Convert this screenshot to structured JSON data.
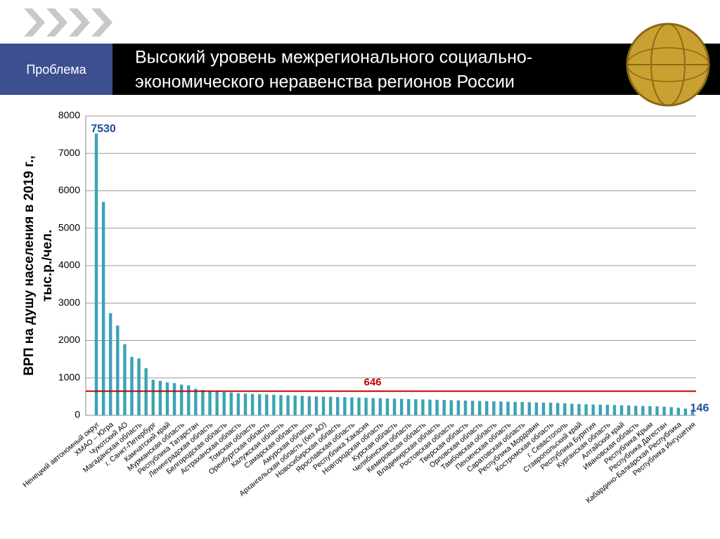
{
  "header": {
    "tab": "Проблема",
    "title": [
      "Высокий уровень межрегионального социально-",
      "экономического неравенства регионов России"
    ]
  },
  "chart_data": {
    "type": "bar",
    "ylabel": [
      "ВРП на душу населения в 2019 г.,",
      "тыс.р./чел."
    ],
    "categories": [
      "Ненецкий автономный округ",
      null,
      "ХМАО – Югра",
      null,
      "Чукотский АО",
      null,
      "Магаданская область",
      null,
      "г. Санкт-Петербург",
      null,
      "Камчатский край",
      null,
      "Мурманская область",
      null,
      "Республика Татарстан",
      null,
      "Ленинградская область",
      null,
      "Белгородская область",
      null,
      "Астраханская область",
      null,
      "Томская область",
      null,
      "Оренбургская область",
      null,
      "Калужская область",
      null,
      "Самарская область",
      null,
      "Амурская область",
      null,
      "Архангельская область (без АО)",
      null,
      "Новосибирская область",
      null,
      "Ярославская область",
      null,
      "Республика Хакасия",
      null,
      "Новгородская область",
      null,
      "Курская область",
      null,
      "Челябинская область",
      null,
      "Кемеровская область",
      null,
      "Владимирская область",
      null,
      "Ростовская область",
      null,
      "Тверская область",
      null,
      "Орловская область",
      null,
      "Тамбовская область",
      null,
      "Пензенская область",
      null,
      "Саратовская область",
      null,
      "Республика Мордовия",
      null,
      "Костромская область",
      null,
      "г. Севастополь",
      null,
      "Ставропольский край",
      null,
      "Республика Бурятия",
      null,
      "Курганская область",
      null,
      "Алтайский край",
      null,
      "Ивановская область",
      null,
      "Республика Крым",
      null,
      "Республика Дагестан",
      null,
      "Кабардино-Балкарская Республика",
      null,
      "Республика Ингушетия"
    ],
    "values": [
      7530,
      5700,
      2730,
      2400,
      1900,
      1560,
      1520,
      1260,
      950,
      920,
      880,
      860,
      820,
      800,
      710,
      680,
      660,
      640,
      620,
      610,
      590,
      580,
      570,
      565,
      560,
      550,
      540,
      535,
      530,
      520,
      510,
      505,
      500,
      495,
      490,
      485,
      480,
      475,
      470,
      460,
      455,
      450,
      445,
      440,
      435,
      430,
      425,
      420,
      415,
      410,
      405,
      400,
      395,
      390,
      385,
      380,
      375,
      370,
      365,
      360,
      355,
      350,
      345,
      340,
      335,
      330,
      320,
      310,
      300,
      295,
      290,
      285,
      280,
      275,
      270,
      265,
      255,
      250,
      245,
      240,
      230,
      220,
      200,
      180,
      146
    ],
    "color": "#3aa3b6",
    "ylim": [
      0,
      8000
    ],
    "yticks": [
      0,
      1000,
      2000,
      3000,
      4000,
      5000,
      6000,
      7000,
      8000
    ],
    "grid": true,
    "reference_line": {
      "value": 646,
      "color": "#c00000"
    },
    "value_label_color": "#1f4e9a"
  }
}
